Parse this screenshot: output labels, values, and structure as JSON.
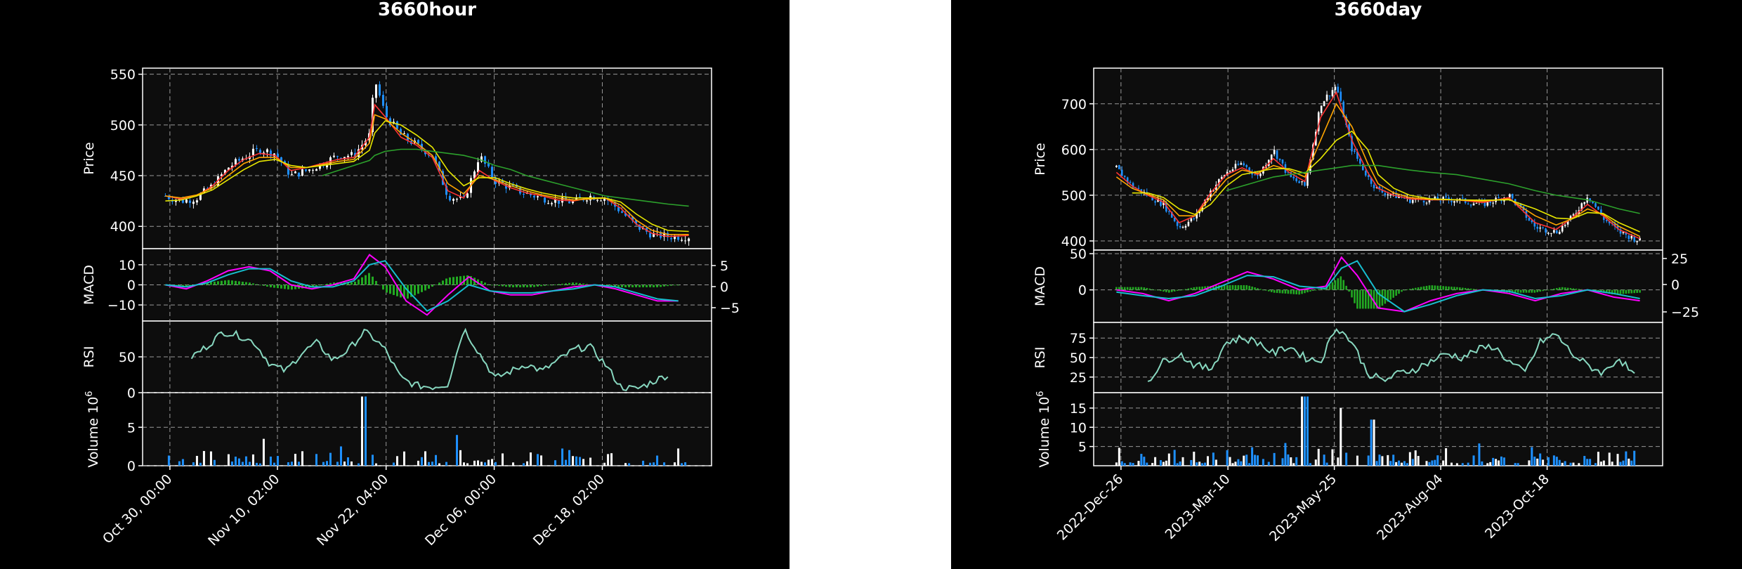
{
  "charts": {
    "left": {
      "title": "3660hour",
      "ylabels": {
        "price": "Price",
        "macd": "MACD",
        "rsi": "RSI",
        "volume": "Volume",
        "volume_exp": "10",
        "volume_exp_sup": "6"
      },
      "price_ticks": [
        "550",
        "500",
        "450",
        "400"
      ],
      "macd_ticks_left": [
        "10",
        "0",
        "−10"
      ],
      "macd_ticks_right": [
        "5",
        "0",
        "−5"
      ],
      "rsi_ticks": [
        "50",
        "0"
      ],
      "volume_ticks": [
        "5",
        "0"
      ],
      "x_ticks": [
        "Oct 30, 00:00",
        "Nov 10, 02:00",
        "Nov 22, 04:00",
        "Dec 06, 00:00",
        "Dec 18, 02:00"
      ]
    },
    "right": {
      "title": "3660day",
      "ylabels": {
        "price": "Price",
        "macd": "MACD",
        "rsi": "RSI",
        "volume": "Volume",
        "volume_exp": "10",
        "volume_exp_sup": "6"
      },
      "price_ticks": [
        "700",
        "600",
        "500",
        "400"
      ],
      "macd_ticks_left": [
        "50",
        "0"
      ],
      "macd_ticks_right": [
        "25",
        "0",
        "−25"
      ],
      "rsi_ticks": [
        "75",
        "50",
        "25"
      ],
      "volume_ticks": [
        "15",
        "10",
        "5"
      ],
      "x_ticks": [
        "2022-Dec-26",
        "2023-Mar-10",
        "2023-May-25",
        "2023-Aug-04",
        "2023-Oct-18"
      ]
    }
  },
  "chart_data": [
    {
      "type": "line",
      "title": "3660hour",
      "x_ticks": [
        "Oct 30, 00:00",
        "Nov 10, 02:00",
        "Nov 22, 04:00",
        "Dec 06, 00:00",
        "Dec 18, 02:00"
      ],
      "panels": {
        "price": {
          "ylabel": "Price",
          "ylim": [
            378,
            556
          ],
          "x": [
            0,
            0.03,
            0.06,
            0.09,
            0.12,
            0.15,
            0.18,
            0.21,
            0.24,
            0.27,
            0.3,
            0.33,
            0.36,
            0.39,
            0.4,
            0.42,
            0.45,
            0.48,
            0.51,
            0.54,
            0.57,
            0.6,
            0.63,
            0.66,
            0.69,
            0.72,
            0.75,
            0.78,
            0.81,
            0.84,
            0.87,
            0.9,
            0.93,
            0.96,
            1.0
          ],
          "series": [
            {
              "color": "#ffffff",
              "values": [
                430,
                425,
                428,
                440,
                458,
                468,
                476,
                472,
                450,
                455,
                462,
                470,
                470,
                490,
                545,
                510,
                490,
                480,
                470,
                430,
                425,
                470,
                445,
                438,
                432,
                428,
                425,
                424,
                430,
                428,
                415,
                400,
                392,
                390,
                390
              ]
            },
            {
              "color": "#ff3333",
              "values": [
                430,
                427,
                430,
                440,
                455,
                466,
                472,
                470,
                455,
                458,
                462,
                466,
                468,
                488,
                520,
                508,
                488,
                480,
                468,
                435,
                428,
                455,
                445,
                438,
                433,
                430,
                426,
                425,
                428,
                428,
                418,
                402,
                393,
                390,
                391
              ]
            },
            {
              "color": "#ffa500",
              "values": [
                430,
                428,
                431,
                438,
                450,
                462,
                468,
                468,
                458,
                458,
                461,
                464,
                466,
                482,
                510,
                506,
                492,
                482,
                470,
                442,
                432,
                450,
                446,
                440,
                435,
                431,
                428,
                426,
                427,
                428,
                421,
                406,
                396,
                392,
                392
              ]
            },
            {
              "color": "#e6e600",
              "values": [
                425,
                426,
                430,
                436,
                446,
                456,
                464,
                466,
                460,
                458,
                460,
                462,
                464,
                475,
                492,
                504,
                500,
                490,
                478,
                455,
                440,
                448,
                448,
                442,
                437,
                433,
                430,
                428,
                428,
                428,
                424,
                412,
                402,
                396,
                395
              ]
            },
            {
              "color": "#2ca02c",
              "values": [
                null,
                null,
                null,
                null,
                null,
                null,
                null,
                null,
                null,
                null,
                450,
                455,
                460,
                465,
                470,
                474,
                476,
                476,
                474,
                472,
                470,
                466,
                460,
                456,
                450,
                446,
                442,
                438,
                434,
                430,
                428,
                426,
                424,
                422,
                420
              ]
            }
          ]
        },
        "macd": {
          "ylabel": "MACD",
          "ylim": [
            -18,
            18
          ],
          "x": [
            0,
            0.04,
            0.08,
            0.12,
            0.16,
            0.2,
            0.24,
            0.28,
            0.32,
            0.36,
            0.39,
            0.42,
            0.46,
            0.5,
            0.54,
            0.58,
            0.62,
            0.66,
            0.7,
            0.74,
            0.78,
            0.82,
            0.86,
            0.9,
            0.94,
            0.98
          ],
          "series": [
            {
              "color": "#ff00ff",
              "values": [
                0,
                -2,
                2,
                7,
                9,
                7,
                0,
                -2,
                0,
                3,
                15,
                9,
                -8,
                -15,
                -5,
                4,
                -3,
                -5,
                -5,
                -3,
                -1,
                0,
                -2,
                -5,
                -8,
                -8
              ]
            },
            {
              "color": "#17becf",
              "values": [
                0,
                -1,
                1,
                5,
                8,
                8,
                2,
                -1,
                -1,
                2,
                10,
                12,
                -2,
                -13,
                -8,
                0,
                -3,
                -4,
                -4,
                -3,
                -2,
                0,
                -1,
                -4,
                -7,
                -8
              ]
            }
          ]
        },
        "rsi": {
          "ylabel": "RSI",
          "ylim": [
            0,
            100
          ],
          "x": [
            0.05,
            0.08,
            0.11,
            0.14,
            0.17,
            0.2,
            0.23,
            0.26,
            0.29,
            0.32,
            0.35,
            0.38,
            0.4,
            0.42,
            0.45,
            0.48,
            0.51,
            0.54,
            0.57,
            0.6,
            0.63,
            0.66,
            0.69,
            0.72,
            0.75,
            0.78,
            0.81,
            0.84,
            0.87,
            0.9,
            0.93,
            0.96
          ],
          "series": [
            {
              "color": "#88d8c0",
              "values": [
                50,
                65,
                85,
                80,
                70,
                40,
                30,
                55,
                70,
                45,
                60,
                85,
                75,
                60,
                20,
                10,
                8,
                12,
                90,
                55,
                20,
                30,
                40,
                30,
                45,
                60,
                65,
                40,
                8,
                5,
                15,
                25
              ]
            }
          ]
        },
        "volume": {
          "ylabel": "Volume",
          "ylim": [
            0,
            9.5
          ],
          "highlights": [
            {
              "x": 0.38,
              "value": 9.0
            },
            {
              "x": 0.19,
              "value": 3.5
            },
            {
              "x": 0.55,
              "value": 4.0
            }
          ]
        }
      }
    },
    {
      "type": "line",
      "title": "3660day",
      "x_ticks": [
        "2022-Dec-26",
        "2023-Mar-10",
        "2023-May-25",
        "2023-Aug-04",
        "2023-Oct-18"
      ],
      "panels": {
        "price": {
          "ylabel": "Price",
          "ylim": [
            380,
            778
          ],
          "x": [
            0,
            0.03,
            0.06,
            0.09,
            0.12,
            0.15,
            0.18,
            0.21,
            0.24,
            0.27,
            0.3,
            0.33,
            0.36,
            0.39,
            0.42,
            0.45,
            0.48,
            0.5,
            0.53,
            0.56,
            0.6,
            0.65,
            0.7,
            0.75,
            0.8,
            0.84,
            0.87,
            0.9,
            0.93,
            0.96,
            1.0
          ],
          "series": [
            {
              "color": "#ffffff",
              "values": [
                560,
                520,
                500,
                480,
                430,
                450,
                510,
                550,
                570,
                540,
                600,
                540,
                520,
                700,
                740,
                600,
                540,
                510,
                500,
                490,
                490,
                490,
                480,
                500,
                430,
                420,
                450,
                500,
                450,
                420,
                400
              ]
            },
            {
              "color": "#ff3333",
              "values": [
                550,
                520,
                500,
                485,
                440,
                455,
                505,
                545,
                560,
                545,
                580,
                550,
                530,
                670,
                725,
                620,
                550,
                515,
                500,
                492,
                490,
                490,
                484,
                495,
                440,
                425,
                450,
                480,
                455,
                425,
                405
              ]
            },
            {
              "color": "#ffa500",
              "values": [
                540,
                515,
                502,
                490,
                455,
                455,
                495,
                535,
                555,
                548,
                565,
                555,
                540,
                620,
                700,
                650,
                570,
                525,
                505,
                495,
                491,
                490,
                487,
                492,
                455,
                435,
                448,
                470,
                458,
                432,
                410
              ]
            },
            {
              "color": "#e6e600",
              "values": [
                null,
                505,
                505,
                495,
                470,
                458,
                480,
                520,
                545,
                552,
                558,
                558,
                548,
                580,
                620,
                640,
                600,
                545,
                515,
                500,
                492,
                490,
                489,
                490,
                470,
                450,
                448,
                462,
                460,
                440,
                420
              ]
            },
            {
              "color": "#2ca02c",
              "values": [
                null,
                null,
                null,
                null,
                null,
                null,
                null,
                510,
                520,
                530,
                540,
                545,
                550,
                555,
                560,
                565,
                565,
                565,
                560,
                555,
                550,
                545,
                535,
                525,
                510,
                500,
                495,
                490,
                480,
                470,
                460
              ]
            }
          ]
        },
        "macd": {
          "ylabel": "MACD",
          "ylim": [
            -45,
            55
          ],
          "x": [
            0,
            0.05,
            0.1,
            0.15,
            0.2,
            0.25,
            0.3,
            0.35,
            0.4,
            0.43,
            0.46,
            0.5,
            0.55,
            0.6,
            0.65,
            0.7,
            0.75,
            0.8,
            0.85,
            0.9,
            0.95,
            1.0
          ],
          "series": [
            {
              "color": "#ff00ff",
              "values": [
                0,
                -5,
                -15,
                -5,
                10,
                25,
                15,
                0,
                5,
                45,
                20,
                -25,
                -30,
                -15,
                -5,
                0,
                -5,
                -15,
                -5,
                0,
                -10,
                -15
              ]
            },
            {
              "color": "#17becf",
              "values": [
                -3,
                -8,
                -12,
                -8,
                5,
                20,
                18,
                5,
                2,
                30,
                40,
                -5,
                -30,
                -20,
                -8,
                0,
                -2,
                -12,
                -8,
                0,
                -5,
                -12
              ]
            }
          ]
        },
        "rsi": {
          "ylabel": "RSI",
          "ylim": [
            5,
            95
          ],
          "x": [
            0.06,
            0.09,
            0.12,
            0.15,
            0.18,
            0.21,
            0.24,
            0.27,
            0.3,
            0.33,
            0.36,
            0.39,
            0.42,
            0.45,
            0.48,
            0.51,
            0.54,
            0.57,
            0.6,
            0.63,
            0.66,
            0.69,
            0.72,
            0.75,
            0.78,
            0.81,
            0.84,
            0.87,
            0.9,
            0.93,
            0.96,
            0.99
          ],
          "series": [
            {
              "color": "#88d8c0",
              "values": [
                20,
                45,
                55,
                40,
                35,
                70,
                75,
                70,
                55,
                65,
                50,
                45,
                90,
                70,
                30,
                20,
                30,
                35,
                45,
                55,
                50,
                60,
                65,
                45,
                30,
                70,
                80,
                55,
                40,
                30,
                50,
                25
              ]
            }
          ]
        },
        "volume": {
          "ylabel": "Volume",
          "ylim": [
            0,
            19
          ],
          "highlights": [
            {
              "x": 0.36,
              "value": 18
            },
            {
              "x": 0.43,
              "value": 15
            },
            {
              "x": 0.49,
              "value": 12
            }
          ]
        }
      }
    }
  ]
}
